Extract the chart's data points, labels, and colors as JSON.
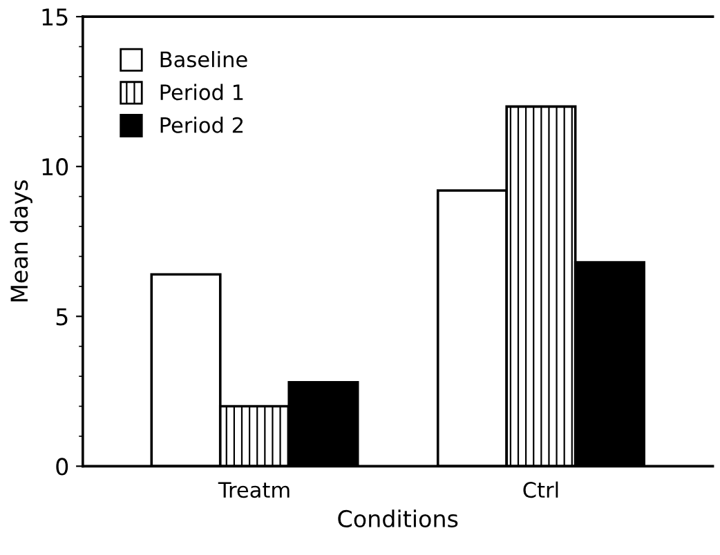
{
  "chart_data": {
    "type": "bar",
    "xlabel": "Conditions",
    "ylabel": "Mean days",
    "categories": [
      "Treatm",
      "Ctrl"
    ],
    "series": [
      {
        "name": "Baseline",
        "color": "#ffffff",
        "values": [
          6.4,
          9.2
        ]
      },
      {
        "name": "Period 1",
        "color": "#000000",
        "values": [
          2.0,
          12.0
        ]
      },
      {
        "name": "Period 2",
        "color": "#000000",
        "values": [
          2.8,
          6.8
        ]
      }
    ],
    "ylim": [
      0,
      15
    ],
    "yticks": [
      0,
      5,
      10,
      15
    ],
    "grid": false,
    "legend": "top left"
  }
}
